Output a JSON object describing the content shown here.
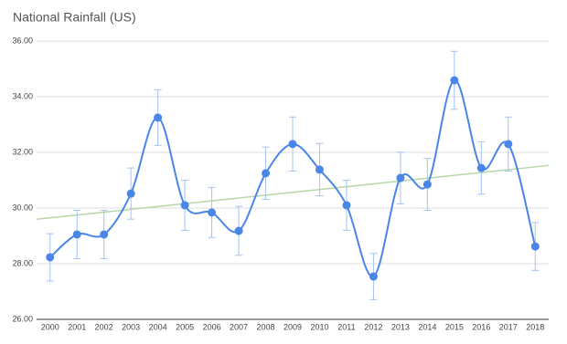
{
  "chart_data": {
    "type": "line",
    "title": "National Rainfall (US)",
    "categories": [
      "2000",
      "2001",
      "2002",
      "2003",
      "2004",
      "2005",
      "2006",
      "2007",
      "2008",
      "2009",
      "2010",
      "2011",
      "2012",
      "2013",
      "2014",
      "2015",
      "2016",
      "2017",
      "2018"
    ],
    "series": [
      {
        "color": "#4a86e8",
        "values": [
          28.23,
          29.05,
          29.05,
          30.52,
          33.25,
          30.1,
          29.84,
          29.18,
          31.25,
          32.3,
          31.38,
          30.1,
          27.54,
          31.08,
          30.85,
          34.59,
          31.44,
          32.3,
          28.62
        ],
        "errors": [
          0.85,
          0.87,
          0.87,
          0.92,
          1.0,
          0.9,
          0.9,
          0.88,
          0.94,
          0.97,
          0.94,
          0.9,
          0.83,
          0.93,
          0.93,
          1.04,
          0.94,
          0.97,
          0.86
        ],
        "error_color": "#a4c2f4"
      }
    ],
    "trendline": {
      "start": 29.65,
      "end": 31.48,
      "color": "#b6d7a8"
    },
    "ylim": [
      26,
      36
    ],
    "yticks": [
      {
        "value": 26,
        "label": "26.00"
      },
      {
        "value": 28,
        "label": "28.00"
      },
      {
        "value": 30,
        "label": "30.00"
      },
      {
        "value": 32,
        "label": "32.00"
      },
      {
        "value": 34,
        "label": "34.00"
      },
      {
        "value": 36,
        "label": "36.00"
      }
    ],
    "grid": true
  }
}
